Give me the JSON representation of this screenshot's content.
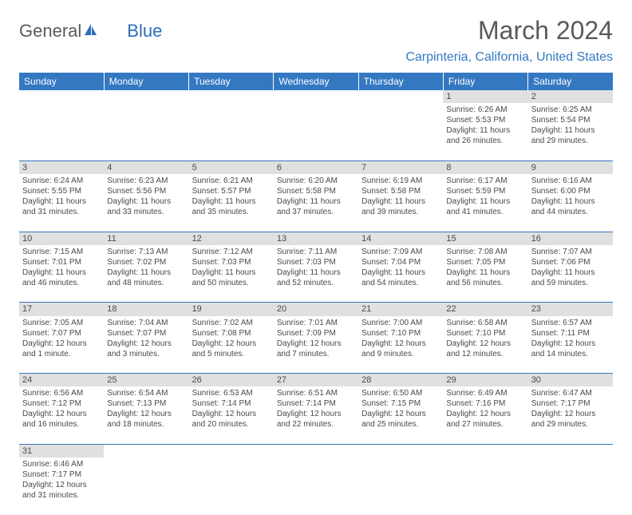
{
  "logo": {
    "text1": "General",
    "text2": "Blue"
  },
  "title": "March 2024",
  "location": "Carpinteria, California, United States",
  "colors": {
    "header_bg": "#3478c2",
    "header_text": "#ffffff",
    "daynum_bg": "#e0e0e0",
    "border": "#3478c2",
    "text": "#4a4a4a",
    "accent": "#3478c2"
  },
  "weekdays": [
    "Sunday",
    "Monday",
    "Tuesday",
    "Wednesday",
    "Thursday",
    "Friday",
    "Saturday"
  ],
  "weeks": [
    [
      null,
      null,
      null,
      null,
      null,
      {
        "n": "1",
        "sr": "Sunrise: 6:26 AM",
        "ss": "Sunset: 5:53 PM",
        "d1": "Daylight: 11 hours",
        "d2": "and 26 minutes."
      },
      {
        "n": "2",
        "sr": "Sunrise: 6:25 AM",
        "ss": "Sunset: 5:54 PM",
        "d1": "Daylight: 11 hours",
        "d2": "and 29 minutes."
      }
    ],
    [
      {
        "n": "3",
        "sr": "Sunrise: 6:24 AM",
        "ss": "Sunset: 5:55 PM",
        "d1": "Daylight: 11 hours",
        "d2": "and 31 minutes."
      },
      {
        "n": "4",
        "sr": "Sunrise: 6:23 AM",
        "ss": "Sunset: 5:56 PM",
        "d1": "Daylight: 11 hours",
        "d2": "and 33 minutes."
      },
      {
        "n": "5",
        "sr": "Sunrise: 6:21 AM",
        "ss": "Sunset: 5:57 PM",
        "d1": "Daylight: 11 hours",
        "d2": "and 35 minutes."
      },
      {
        "n": "6",
        "sr": "Sunrise: 6:20 AM",
        "ss": "Sunset: 5:58 PM",
        "d1": "Daylight: 11 hours",
        "d2": "and 37 minutes."
      },
      {
        "n": "7",
        "sr": "Sunrise: 6:19 AM",
        "ss": "Sunset: 5:58 PM",
        "d1": "Daylight: 11 hours",
        "d2": "and 39 minutes."
      },
      {
        "n": "8",
        "sr": "Sunrise: 6:17 AM",
        "ss": "Sunset: 5:59 PM",
        "d1": "Daylight: 11 hours",
        "d2": "and 41 minutes."
      },
      {
        "n": "9",
        "sr": "Sunrise: 6:16 AM",
        "ss": "Sunset: 6:00 PM",
        "d1": "Daylight: 11 hours",
        "d2": "and 44 minutes."
      }
    ],
    [
      {
        "n": "10",
        "sr": "Sunrise: 7:15 AM",
        "ss": "Sunset: 7:01 PM",
        "d1": "Daylight: 11 hours",
        "d2": "and 46 minutes."
      },
      {
        "n": "11",
        "sr": "Sunrise: 7:13 AM",
        "ss": "Sunset: 7:02 PM",
        "d1": "Daylight: 11 hours",
        "d2": "and 48 minutes."
      },
      {
        "n": "12",
        "sr": "Sunrise: 7:12 AM",
        "ss": "Sunset: 7:03 PM",
        "d1": "Daylight: 11 hours",
        "d2": "and 50 minutes."
      },
      {
        "n": "13",
        "sr": "Sunrise: 7:11 AM",
        "ss": "Sunset: 7:03 PM",
        "d1": "Daylight: 11 hours",
        "d2": "and 52 minutes."
      },
      {
        "n": "14",
        "sr": "Sunrise: 7:09 AM",
        "ss": "Sunset: 7:04 PM",
        "d1": "Daylight: 11 hours",
        "d2": "and 54 minutes."
      },
      {
        "n": "15",
        "sr": "Sunrise: 7:08 AM",
        "ss": "Sunset: 7:05 PM",
        "d1": "Daylight: 11 hours",
        "d2": "and 56 minutes."
      },
      {
        "n": "16",
        "sr": "Sunrise: 7:07 AM",
        "ss": "Sunset: 7:06 PM",
        "d1": "Daylight: 11 hours",
        "d2": "and 59 minutes."
      }
    ],
    [
      {
        "n": "17",
        "sr": "Sunrise: 7:05 AM",
        "ss": "Sunset: 7:07 PM",
        "d1": "Daylight: 12 hours",
        "d2": "and 1 minute."
      },
      {
        "n": "18",
        "sr": "Sunrise: 7:04 AM",
        "ss": "Sunset: 7:07 PM",
        "d1": "Daylight: 12 hours",
        "d2": "and 3 minutes."
      },
      {
        "n": "19",
        "sr": "Sunrise: 7:02 AM",
        "ss": "Sunset: 7:08 PM",
        "d1": "Daylight: 12 hours",
        "d2": "and 5 minutes."
      },
      {
        "n": "20",
        "sr": "Sunrise: 7:01 AM",
        "ss": "Sunset: 7:09 PM",
        "d1": "Daylight: 12 hours",
        "d2": "and 7 minutes."
      },
      {
        "n": "21",
        "sr": "Sunrise: 7:00 AM",
        "ss": "Sunset: 7:10 PM",
        "d1": "Daylight: 12 hours",
        "d2": "and 9 minutes."
      },
      {
        "n": "22",
        "sr": "Sunrise: 6:58 AM",
        "ss": "Sunset: 7:10 PM",
        "d1": "Daylight: 12 hours",
        "d2": "and 12 minutes."
      },
      {
        "n": "23",
        "sr": "Sunrise: 6:57 AM",
        "ss": "Sunset: 7:11 PM",
        "d1": "Daylight: 12 hours",
        "d2": "and 14 minutes."
      }
    ],
    [
      {
        "n": "24",
        "sr": "Sunrise: 6:56 AM",
        "ss": "Sunset: 7:12 PM",
        "d1": "Daylight: 12 hours",
        "d2": "and 16 minutes."
      },
      {
        "n": "25",
        "sr": "Sunrise: 6:54 AM",
        "ss": "Sunset: 7:13 PM",
        "d1": "Daylight: 12 hours",
        "d2": "and 18 minutes."
      },
      {
        "n": "26",
        "sr": "Sunrise: 6:53 AM",
        "ss": "Sunset: 7:14 PM",
        "d1": "Daylight: 12 hours",
        "d2": "and 20 minutes."
      },
      {
        "n": "27",
        "sr": "Sunrise: 6:51 AM",
        "ss": "Sunset: 7:14 PM",
        "d1": "Daylight: 12 hours",
        "d2": "and 22 minutes."
      },
      {
        "n": "28",
        "sr": "Sunrise: 6:50 AM",
        "ss": "Sunset: 7:15 PM",
        "d1": "Daylight: 12 hours",
        "d2": "and 25 minutes."
      },
      {
        "n": "29",
        "sr": "Sunrise: 6:49 AM",
        "ss": "Sunset: 7:16 PM",
        "d1": "Daylight: 12 hours",
        "d2": "and 27 minutes."
      },
      {
        "n": "30",
        "sr": "Sunrise: 6:47 AM",
        "ss": "Sunset: 7:17 PM",
        "d1": "Daylight: 12 hours",
        "d2": "and 29 minutes."
      }
    ],
    [
      {
        "n": "31",
        "sr": "Sunrise: 6:46 AM",
        "ss": "Sunset: 7:17 PM",
        "d1": "Daylight: 12 hours",
        "d2": "and 31 minutes."
      },
      null,
      null,
      null,
      null,
      null,
      null
    ]
  ]
}
